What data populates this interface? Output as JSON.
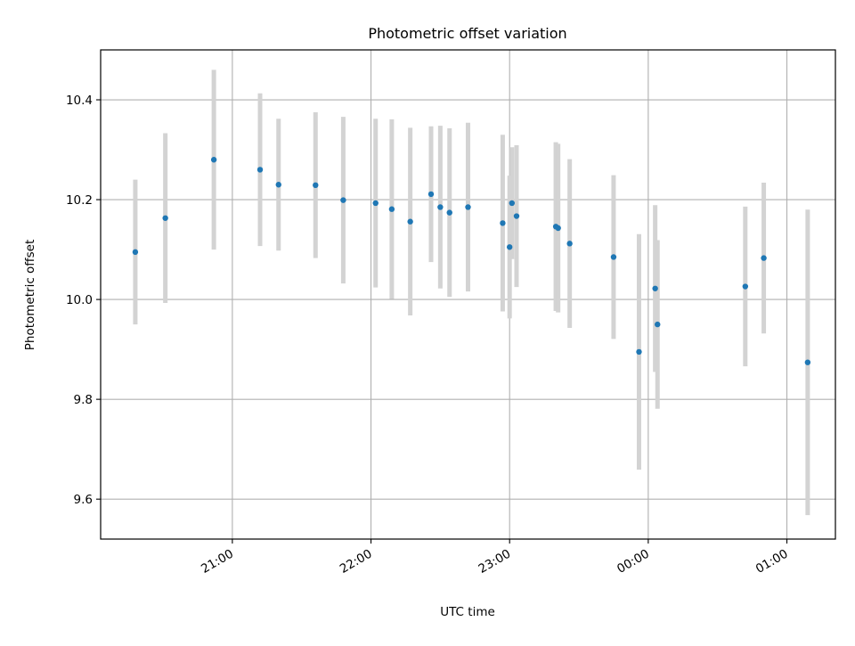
{
  "chart_data": {
    "type": "scatter",
    "title": "Photometric offset variation",
    "xlabel": "UTC time",
    "ylabel": "Photometric offset",
    "grid": true,
    "x_range": [
      "20:03",
      "01:21"
    ],
    "ylim": [
      9.52,
      10.5
    ],
    "x_ticks": [
      "21:00",
      "22:00",
      "23:00",
      "00:00",
      "01:00"
    ],
    "y_ticks": [
      "9.6",
      "9.8",
      "10.0",
      "10.2",
      "10.4"
    ],
    "error_bar_color": "#d3d3d3",
    "marker_color": "#1f77b4",
    "series": [
      {
        "points": [
          {
            "x": "20:18",
            "y": 10.095,
            "err": 0.145
          },
          {
            "x": "20:31",
            "y": 10.163,
            "err": 0.17
          },
          {
            "x": "20:52",
            "y": 10.28,
            "err": 0.18
          },
          {
            "x": "21:12",
            "y": 10.26,
            "err": 0.153
          },
          {
            "x": "21:20",
            "y": 10.23,
            "err": 0.132
          },
          {
            "x": "21:36",
            "y": 10.229,
            "err": 0.146
          },
          {
            "x": "21:48",
            "y": 10.199,
            "err": 0.167
          },
          {
            "x": "22:02",
            "y": 10.193,
            "err": 0.169
          },
          {
            "x": "22:09",
            "y": 10.181,
            "err": 0.18
          },
          {
            "x": "22:17",
            "y": 10.156,
            "err": 0.188
          },
          {
            "x": "22:26",
            "y": 10.211,
            "err": 0.136
          },
          {
            "x": "22:30",
            "y": 10.185,
            "err": 0.163
          },
          {
            "x": "22:34",
            "y": 10.174,
            "err": 0.169
          },
          {
            "x": "22:42",
            "y": 10.185,
            "err": 0.169
          },
          {
            "x": "22:57",
            "y": 10.153,
            "err": 0.177
          },
          {
            "x": "23:00",
            "y": 10.105,
            "err": 0.143
          },
          {
            "x": "23:01",
            "y": 10.193,
            "err": 0.112
          },
          {
            "x": "23:03",
            "y": 10.167,
            "err": 0.142
          },
          {
            "x": "23:20",
            "y": 10.146,
            "err": 0.169
          },
          {
            "x": "23:21",
            "y": 10.143,
            "err": 0.169
          },
          {
            "x": "23:26",
            "y": 10.112,
            "err": 0.169
          },
          {
            "x": "23:45",
            "y": 10.085,
            "err": 0.164
          },
          {
            "x": "23:56",
            "y": 9.895,
            "err": 0.236
          },
          {
            "x": "00:03",
            "y": 10.022,
            "err": 0.167
          },
          {
            "x": "00:04",
            "y": 9.95,
            "err": 0.169
          },
          {
            "x": "00:42",
            "y": 10.026,
            "err": 0.16
          },
          {
            "x": "00:50",
            "y": 10.083,
            "err": 0.151
          },
          {
            "x": "01:09",
            "y": 9.874,
            "err": 0.306
          }
        ]
      }
    ]
  }
}
